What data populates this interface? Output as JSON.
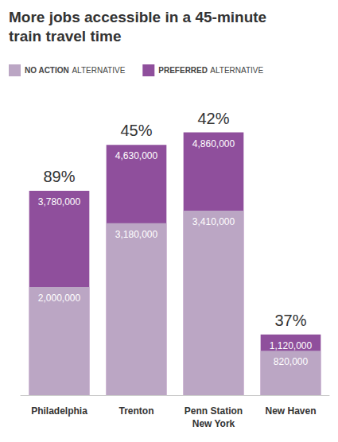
{
  "chart_data": {
    "type": "bar",
    "title": "More jobs accessible in a 45-minute\ntrain travel time",
    "categories": [
      "Philadelphia",
      "Trenton",
      "Penn Station\nNew York",
      "New Haven"
    ],
    "series": [
      {
        "name": "NO ACTION ALTERNATIVE",
        "color": "#bba6c4",
        "values": [
          2000000,
          3180000,
          3410000,
          820000
        ],
        "value_labels": [
          "2,000,000",
          "3,180,000",
          "3,410,000",
          "820,000"
        ]
      },
      {
        "name": "PREFERRED ALTERNATIVE",
        "color": "#8f4f9c",
        "values": [
          3780000,
          4630000,
          4860000,
          1120000
        ],
        "value_labels": [
          "3,780,000",
          "4,630,000",
          "4,860,000",
          "1,120,000"
        ]
      }
    ],
    "annotations": [
      {
        "category": "Philadelphia",
        "text": "89%"
      },
      {
        "category": "Trenton",
        "text": "45%"
      },
      {
        "category": "Penn Station\nNew York",
        "text": "42%"
      },
      {
        "category": "New Haven",
        "text": "37%"
      }
    ],
    "ylim": [
      0,
      5000000
    ],
    "stacked": false,
    "data_labels": true,
    "grid": false,
    "legend": "top-left",
    "tick_labels": "x"
  }
}
